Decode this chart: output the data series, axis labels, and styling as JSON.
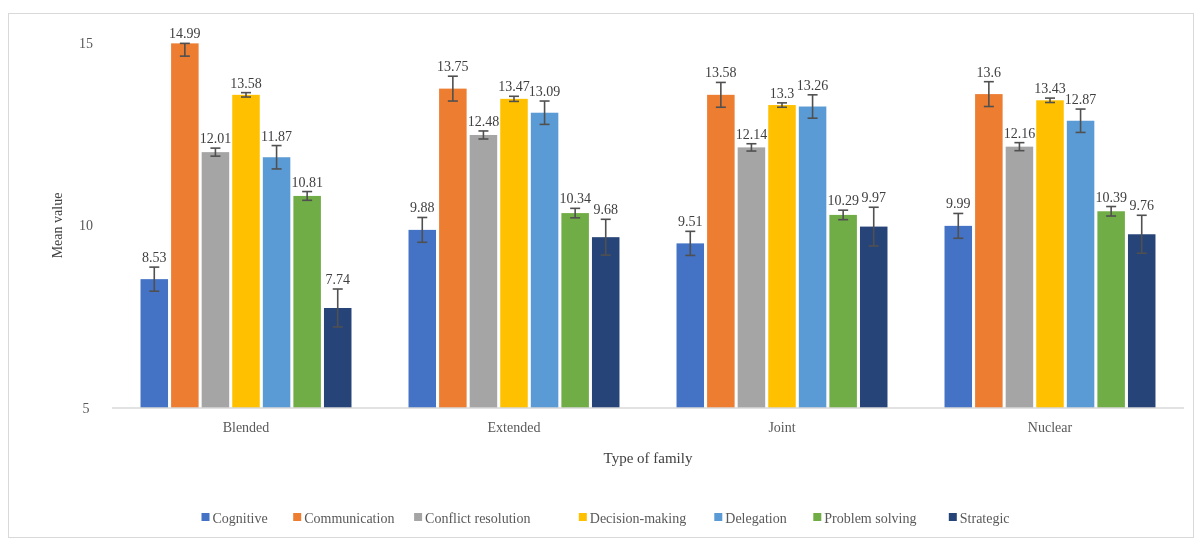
{
  "chart_data": {
    "type": "bar",
    "xlabel": "Type of family",
    "ylabel": "Mean value",
    "categories": [
      "Blended",
      "Extended",
      "Joint",
      "Nuclear"
    ],
    "ylim": [
      5,
      15
    ],
    "yticks": [
      5,
      10,
      15
    ],
    "grid": false,
    "legend": "bottom",
    "data_labels": true,
    "series": [
      {
        "name": "Cognitive",
        "color": "#4472c4",
        "values": [
          8.53,
          9.88,
          9.51,
          9.99
        ],
        "errors": [
          0.33,
          0.34,
          0.33,
          0.34
        ]
      },
      {
        "name": "Communication",
        "color": "#ed7d31",
        "values": [
          14.99,
          13.75,
          13.58,
          13.6
        ],
        "errors": [
          [
            14.64,
            14.99
          ],
          0.34,
          0.34,
          0.34
        ]
      },
      {
        "name": "Conflict resolution",
        "color": "#a5a5a5",
        "values": [
          12.01,
          12.48,
          12.14,
          12.16
        ],
        "errors": [
          0.11,
          0.11,
          0.1,
          0.11
        ]
      },
      {
        "name": "Decision-making",
        "color": "#ffc000",
        "values": [
          13.58,
          13.47,
          13.3,
          13.43
        ],
        "errors": [
          0.06,
          0.07,
          0.06,
          0.06
        ]
      },
      {
        "name": "Delegation",
        "color": "#5b9bd5",
        "values": [
          11.87,
          13.09,
          13.26,
          12.87
        ],
        "errors": [
          0.32,
          0.32,
          0.32,
          0.32
        ]
      },
      {
        "name": "Problem solving",
        "color": "#70ad47",
        "values": [
          10.81,
          10.34,
          10.29,
          10.39
        ],
        "errors": [
          0.12,
          0.13,
          0.13,
          0.13
        ]
      },
      {
        "name": "Strategic",
        "color": "#264478",
        "values": [
          7.74,
          9.68,
          9.97,
          9.76
        ],
        "errors": [
          0.52,
          0.49,
          0.53,
          0.52
        ]
      }
    ]
  }
}
